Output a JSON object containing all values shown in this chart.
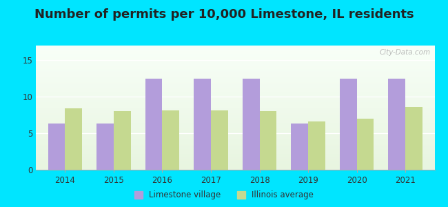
{
  "title": "Number of permits per 10,000 Limestone, IL residents",
  "years": [
    2014,
    2015,
    2016,
    2017,
    2018,
    2019,
    2020,
    2021
  ],
  "limestone": [
    6.3,
    6.3,
    12.5,
    12.5,
    12.5,
    6.3,
    12.5,
    12.5
  ],
  "illinois": [
    8.4,
    8.0,
    8.1,
    8.1,
    8.0,
    6.6,
    7.0,
    8.6
  ],
  "limestone_color": "#b39ddb",
  "illinois_color": "#c5d990",
  "background_outer": "#00e5ff",
  "grad_top": "#e8f5e0",
  "grad_bottom": "#f8fff8",
  "bar_width": 0.35,
  "ylim": [
    0,
    17
  ],
  "yticks": [
    0,
    5,
    10,
    15
  ],
  "legend_limestone": "Limestone village",
  "legend_illinois": "Illinois average",
  "title_fontsize": 13,
  "watermark": "City-Data.com"
}
